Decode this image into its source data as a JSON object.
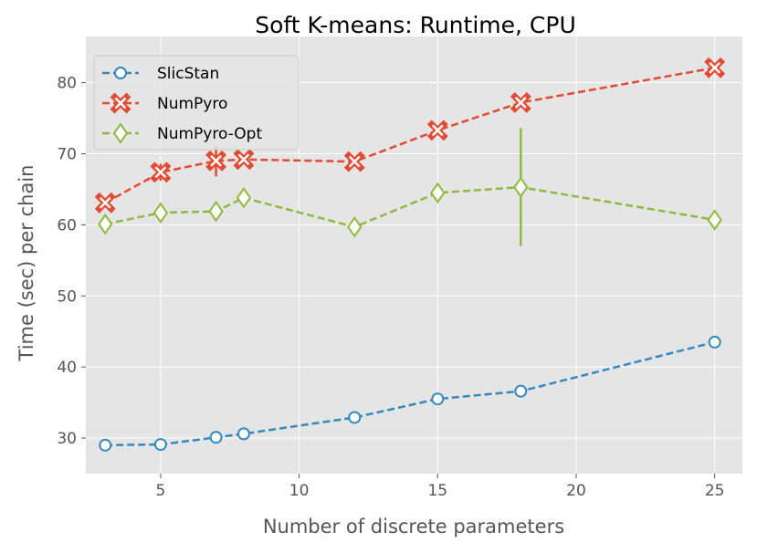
{
  "chart_data": {
    "type": "line",
    "title": "Soft K-means: Runtime, CPU",
    "xlabel": "Number of discrete parameters",
    "ylabel": "Time (sec) per chain",
    "xlim": [
      2.3,
      26.0
    ],
    "ylim": [
      25.0,
      86.5
    ],
    "xticks": [
      5,
      10,
      15,
      20,
      25
    ],
    "yticks": [
      30,
      40,
      50,
      60,
      70,
      80
    ],
    "grid": true,
    "legend_position": "top-left",
    "series": [
      {
        "name": "SlicStan",
        "color": "#348ABD",
        "marker": "circle",
        "x": [
          3,
          5,
          7,
          8,
          12,
          15,
          18,
          25
        ],
        "y": [
          29.0,
          29.1,
          30.1,
          30.6,
          32.9,
          35.5,
          36.6,
          43.5
        ],
        "err": [
          0.2,
          0.2,
          0.2,
          0.3,
          0.3,
          0.5,
          0.4,
          0.3
        ]
      },
      {
        "name": "NumPyro",
        "color": "#E24A33",
        "marker": "x",
        "x": [
          3,
          5,
          7,
          8,
          12,
          15,
          18,
          25
        ],
        "y": [
          63.1,
          67.4,
          69.0,
          69.2,
          68.9,
          73.3,
          77.2,
          82.1
        ],
        "err": [
          0.5,
          1.2,
          2.2,
          0.6,
          0.4,
          0.6,
          0.6,
          0.4
        ]
      },
      {
        "name": "NumPyro-Opt",
        "color": "#8EBA42",
        "marker": "diamond",
        "x": [
          3,
          5,
          7,
          8,
          12,
          15,
          18,
          25
        ],
        "y": [
          60.1,
          61.7,
          61.9,
          63.8,
          59.7,
          64.5,
          65.3,
          60.7
        ],
        "err": [
          0.4,
          0.4,
          0.4,
          0.4,
          0.4,
          0.5,
          8.3,
          0.4
        ]
      }
    ]
  }
}
